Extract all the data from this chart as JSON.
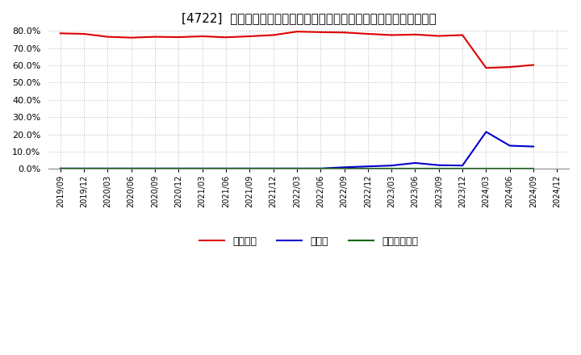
{
  "title": "[4722]  自己資本、のれん、繰延税金資産の総資産に対する比率の推移",
  "x_labels": [
    "2019/09",
    "2019/12",
    "2020/03",
    "2020/06",
    "2020/09",
    "2020/12",
    "2021/03",
    "2021/06",
    "2021/09",
    "2021/12",
    "2022/03",
    "2022/06",
    "2022/09",
    "2022/12",
    "2023/03",
    "2023/06",
    "2023/09",
    "2023/12",
    "2024/03",
    "2024/06",
    "2024/09",
    "2024/12"
  ],
  "jikoshihon": [
    78.5,
    78.2,
    76.5,
    76.0,
    76.5,
    76.3,
    76.8,
    76.2,
    76.8,
    77.5,
    79.5,
    79.2,
    79.0,
    78.2,
    77.5,
    77.8,
    77.0,
    77.5,
    58.5,
    59.0,
    60.2,
    null
  ],
  "noren": [
    0.3,
    0.3,
    0.3,
    0.3,
    0.3,
    0.3,
    0.3,
    0.3,
    0.3,
    0.3,
    0.3,
    0.3,
    1.0,
    1.5,
    2.0,
    3.5,
    2.2,
    2.0,
    21.5,
    13.5,
    13.0,
    null
  ],
  "kuenzeichisan": [
    0.3,
    0.3,
    0.3,
    0.3,
    0.3,
    0.3,
    0.3,
    0.3,
    0.3,
    0.3,
    0.3,
    0.3,
    0.3,
    0.3,
    0.3,
    0.3,
    0.3,
    0.3,
    0.3,
    0.3,
    0.3,
    null
  ],
  "line_colors": {
    "jikoshihon": "#dd0000",
    "noren": "#0000cc",
    "kuenzeichisan": "#006600"
  },
  "legend_labels": {
    "jikoshihon": "自己資本",
    "noren": "のれん",
    "kuenzeichisan": "繰延税金資産"
  },
  "ylim": [
    0,
    80
  ],
  "yticks": [
    0,
    10,
    20,
    30,
    40,
    50,
    60,
    70,
    80
  ],
  "background_color": "#ffffff",
  "grid_color": "#aaaaaa",
  "title_fontsize": 11,
  "linewidth": 1.5
}
